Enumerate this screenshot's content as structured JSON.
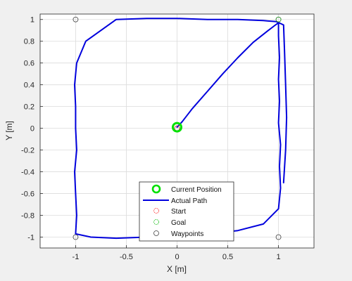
{
  "chart_data": {
    "type": "line",
    "xlabel": "X [m]",
    "ylabel": "Y [m]",
    "xlim": [
      -1.35,
      1.35
    ],
    "ylim": [
      -1.1,
      1.05
    ],
    "grid": true,
    "xticks": [
      -1,
      -0.5,
      0,
      0.5,
      1
    ],
    "xtick_labels": [
      "-1",
      "-0.5",
      "0",
      "0.5",
      "1"
    ],
    "yticks": [
      -1,
      -0.8,
      -0.6,
      -0.4,
      -0.2,
      0,
      0.2,
      0.4,
      0.6,
      0.8,
      1
    ],
    "ytick_labels": [
      "-1",
      "-0.8",
      "-0.6",
      "-0.4",
      "-0.2",
      "0",
      "0.2",
      "0.4",
      "0.6",
      "0.8",
      "1"
    ],
    "legend_position": "bottom-center",
    "series": [
      {
        "name": "Current Position",
        "kind": "marker",
        "color": "#00e000",
        "x": [
          0.0
        ],
        "y": [
          0.01
        ]
      },
      {
        "name": "Actual Path",
        "kind": "line",
        "color": "#0000dd",
        "x": [
          0.0,
          0.05,
          0.15,
          0.3,
          0.45,
          0.6,
          0.75,
          0.9,
          0.97,
          1.0,
          1.0,
          1.01,
          1.0,
          1.01,
          1.0,
          1.02,
          1.01,
          1.02,
          1.0,
          0.85,
          0.6,
          0.3,
          0.0,
          -0.3,
          -0.6,
          -0.85,
          -1.0,
          -0.99,
          -1.0,
          -1.01,
          -0.99,
          -1.0,
          -1.0,
          -1.01,
          -0.99,
          -0.9,
          -0.6,
          -0.3,
          0.0,
          0.3,
          0.6,
          0.85,
          0.98,
          1.05,
          1.06,
          1.07,
          1.08,
          1.07,
          1.05
        ],
        "y": [
          0.01,
          0.06,
          0.18,
          0.34,
          0.5,
          0.65,
          0.79,
          0.9,
          0.95,
          0.97,
          0.85,
          0.65,
          0.45,
          0.25,
          0.05,
          -0.15,
          -0.35,
          -0.55,
          -0.74,
          -0.88,
          -0.94,
          -0.97,
          -0.99,
          -1.0,
          -1.01,
          -1.0,
          -0.97,
          -0.8,
          -0.6,
          -0.4,
          -0.2,
          0.0,
          0.2,
          0.4,
          0.6,
          0.8,
          1.0,
          1.01,
          1.01,
          1.0,
          1.0,
          0.99,
          0.98,
          0.95,
          0.7,
          0.4,
          0.1,
          -0.2,
          -0.5
        ]
      },
      {
        "name": "Start",
        "kind": "marker",
        "color": "#ff3b3b",
        "x": [
          0.0
        ],
        "y": [
          0.0
        ]
      },
      {
        "name": "Goal",
        "kind": "marker",
        "color": "#20c020",
        "x": [
          1.0
        ],
        "y": [
          1.0
        ]
      },
      {
        "name": "Waypoints",
        "kind": "marker",
        "color": "#404040",
        "x": [
          -1.0,
          1.0,
          -1.0,
          1.0,
          0.0
        ],
        "y": [
          1.0,
          1.0,
          -1.0,
          -1.0,
          0.0
        ]
      }
    ]
  }
}
